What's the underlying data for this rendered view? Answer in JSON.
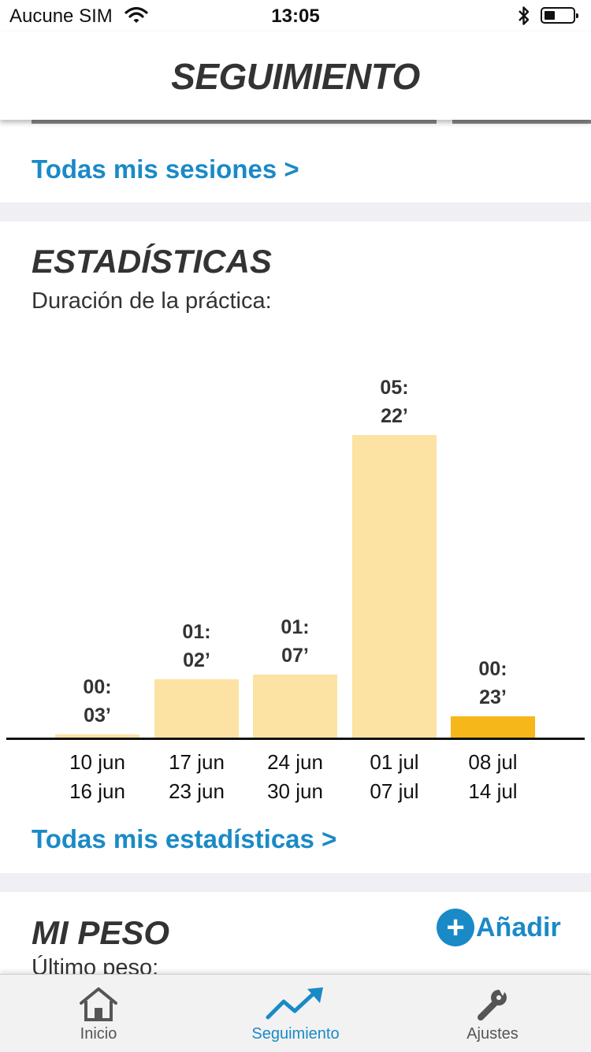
{
  "status_bar": {
    "carrier": "Aucune SIM",
    "time": "13:05"
  },
  "header": {
    "title": "SEGUIMIENTO"
  },
  "sessions": {
    "link_label": "Todas mis sesiones >"
  },
  "statistics": {
    "title": "ESTADÍSTICAS",
    "subtitle": "Duración de la práctica:",
    "link_label": "Todas mis estadísticas >"
  },
  "chart_data": {
    "type": "bar",
    "title": "",
    "xlabel": "",
    "ylabel": "",
    "categories": [
      "10 jun – 16 jun",
      "17 jun – 23 jun",
      "24 jun – 30 jun",
      "01 jul – 07 jul",
      "08 jul – 14 jul"
    ],
    "category_lines": [
      [
        "10 jun",
        "16 jun"
      ],
      [
        "17 jun",
        "23 jun"
      ],
      [
        "24 jun",
        "30 jun"
      ],
      [
        "01 jul",
        "07 jul"
      ],
      [
        "08 jul",
        "14 jul"
      ]
    ],
    "values_minutes": [
      3,
      62,
      67,
      322,
      23
    ],
    "value_labels": [
      [
        "00:",
        "03’"
      ],
      [
        "01:",
        "02’"
      ],
      [
        "01:",
        "07’"
      ],
      [
        "05:",
        "22’"
      ],
      [
        "00:",
        "23’"
      ]
    ],
    "current_index": 4,
    "colors": {
      "bar": "#fce3a3",
      "current_bar": "#f5b719"
    }
  },
  "weight": {
    "title": "MI PESO",
    "add_label": "Añadir",
    "last_weight_label": "Último peso:"
  },
  "tabbar": {
    "tabs": [
      {
        "label": "Inicio",
        "icon": "home-icon"
      },
      {
        "label": "Seguimiento",
        "icon": "trend-icon"
      },
      {
        "label": "Ajustes",
        "icon": "wrench-icon"
      }
    ],
    "active_index": 1
  },
  "colors": {
    "accent": "#1a8ac7",
    "band": "#efeff4"
  }
}
